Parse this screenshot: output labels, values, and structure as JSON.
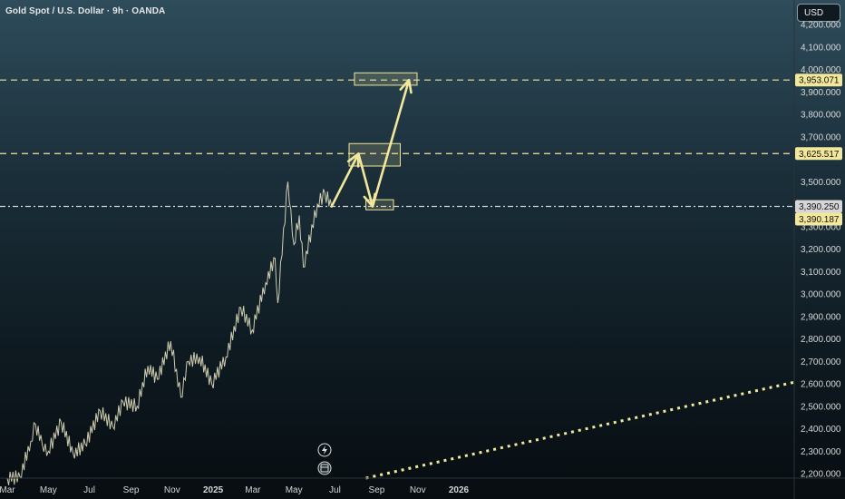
{
  "header": {
    "title": "Gold Spot / U.S. Dollar · 9h · OANDA",
    "currency": "USD"
  },
  "colors": {
    "accent": "#f2e79a",
    "price_line": "#ffffff",
    "axis_text": "#d8d8d8",
    "label_bg": "#111a20"
  },
  "icons": [
    "lightning-icon",
    "event-icon"
  ],
  "chart_data": {
    "type": "line",
    "title": "Gold Spot / U.S. Dollar · 9h · OANDA",
    "x_ticks": [
      "Mar",
      "May",
      "Jul",
      "Sep",
      "Nov",
      "2025",
      "Mar",
      "May",
      "Jul",
      "Sep",
      "Nov",
      "2026"
    ],
    "y_ticks": [
      "2,200.000",
      "2,300.000",
      "2,400.000",
      "2,500.000",
      "2,600.000",
      "2,700.000",
      "2,800.000",
      "2,900.000",
      "3,000.000",
      "3,100.000",
      "3,200.000",
      "3,300.000",
      "3,390.250",
      "3,500.000",
      "3,625.517",
      "3,700.000",
      "3,800.000",
      "3,900.000",
      "3,953.071",
      "4,000.000",
      "4,100.000",
      "4,200.000"
    ],
    "ylim": [
      2180,
      4265
    ],
    "price_levels": [
      {
        "label": "3,953.071",
        "value": 3953.071,
        "style": "dashed"
      },
      {
        "label": "3,625.517",
        "value": 3625.517,
        "style": "dashed"
      },
      {
        "label": "3,390.250",
        "value": 3390.25,
        "style": "dash-dot"
      },
      {
        "label": "3,390.187",
        "value": 3390.187,
        "style": "badge"
      }
    ],
    "series": [
      {
        "values": [
          [
            "2024-03-01",
            2180
          ],
          [
            "2024-03-20",
            2185
          ],
          [
            "2024-04-05",
            2345
          ],
          [
            "2024-04-12",
            2420
          ],
          [
            "2024-04-22",
            2330
          ],
          [
            "2024-05-01",
            2300
          ],
          [
            "2024-05-20",
            2430
          ],
          [
            "2024-06-07",
            2290
          ],
          [
            "2024-06-25",
            2330
          ],
          [
            "2024-07-17",
            2480
          ],
          [
            "2024-08-05",
            2410
          ],
          [
            "2024-08-20",
            2520
          ],
          [
            "2024-09-10",
            2500
          ],
          [
            "2024-09-26",
            2680
          ],
          [
            "2024-10-10",
            2620
          ],
          [
            "2024-10-30",
            2790
          ],
          [
            "2024-11-14",
            2540
          ],
          [
            "2024-11-25",
            2700
          ],
          [
            "2024-12-12",
            2720
          ],
          [
            "2024-12-30",
            2600
          ],
          [
            "2025-01-20",
            2720
          ],
          [
            "2025-02-11",
            2940
          ],
          [
            "2025-02-28",
            2840
          ],
          [
            "2025-03-20",
            3050
          ],
          [
            "2025-04-03",
            3160
          ],
          [
            "2025-04-07",
            2960
          ],
          [
            "2025-04-22",
            3500
          ],
          [
            "2025-05-01",
            3220
          ],
          [
            "2025-05-09",
            3350
          ],
          [
            "2025-05-15",
            3120
          ],
          [
            "2025-06-05",
            3400
          ],
          [
            "2025-06-16",
            3450
          ],
          [
            "2025-06-26",
            3390
          ]
        ]
      }
    ],
    "projection_path": [
      [
        "2025-06-26",
        3390
      ],
      [
        "2025-08-05",
        3625
      ],
      [
        "2025-08-26",
        3390
      ],
      [
        "2025-10-19",
        3953
      ]
    ],
    "zones": [
      {
        "x": [
          "2025-07-30",
          "2025-10-31"
        ],
        "y": [
          3930,
          3985
        ]
      },
      {
        "x": [
          "2025-07-22",
          "2025-10-06"
        ],
        "y": [
          3570,
          3670
        ]
      },
      {
        "x": [
          "2025-08-16",
          "2025-09-26"
        ],
        "y": [
          3375,
          3420
        ]
      }
    ],
    "dotted_trendline": [
      [
        "2025-08-16",
        2180
      ],
      [
        "2026-06-10",
        2380
      ]
    ],
    "grid": false,
    "legend": "none"
  }
}
